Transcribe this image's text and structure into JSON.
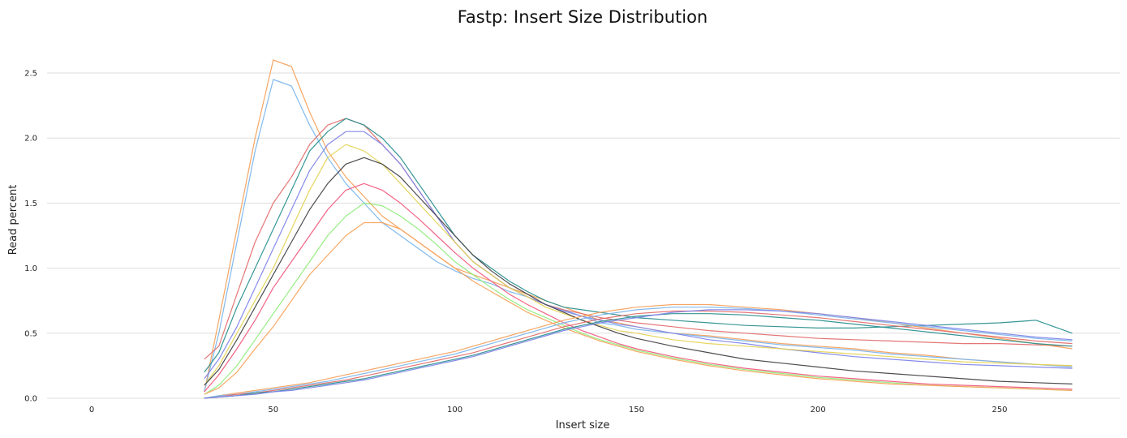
{
  "chart_data": {
    "type": "line",
    "title": "Fastp: Insert Size Distribution",
    "xlabel": "Insert size",
    "ylabel": "Read percent",
    "xlim": [
      -12,
      272
    ],
    "ylim": [
      0,
      2.75
    ],
    "x_ticks": [
      0,
      50,
      100,
      150,
      200,
      250
    ],
    "y_ticks": [
      0.0,
      0.5,
      1.0,
      1.5,
      2.0,
      2.5
    ],
    "y_tick_labels": [
      "0.0",
      "0.5",
      "1.0",
      "1.5",
      "2.0",
      "2.5"
    ],
    "grid": "horizontal",
    "legend": "none",
    "series_colors": [
      "#f4a15d",
      "#7cb5ec",
      "#e36f6f",
      "#2b908f",
      "#8085e9",
      "#e4d354",
      "#434348",
      "#f15c80",
      "#90ed7d",
      "#f7a35c"
    ],
    "x": [
      31,
      35,
      40,
      45,
      50,
      55,
      60,
      65,
      70,
      75,
      80,
      85,
      90,
      95,
      100,
      105,
      110,
      115,
      120,
      125,
      130,
      135,
      140,
      145,
      150,
      160,
      170,
      180,
      190,
      200,
      210,
      220,
      230,
      240,
      250,
      260,
      270
    ],
    "series": [
      {
        "values": [
          0.05,
          0.6,
          1.3,
          2.0,
          2.6,
          2.55,
          2.2,
          1.9,
          1.7,
          1.55,
          1.4,
          1.3,
          1.2,
          1.1,
          1.0,
          0.95,
          0.9,
          0.85,
          0.8,
          0.75,
          0.7,
          0.65,
          0.6,
          0.58,
          0.55,
          0.5,
          0.48,
          0.45,
          0.42,
          0.4,
          0.38,
          0.35,
          0.33,
          0.3,
          0.28,
          0.26,
          0.25
        ]
      },
      {
        "values": [
          0.05,
          0.5,
          1.2,
          1.9,
          2.45,
          2.4,
          2.1,
          1.85,
          1.65,
          1.5,
          1.35,
          1.25,
          1.15,
          1.05,
          0.98,
          0.92,
          0.88,
          0.82,
          0.78,
          0.72,
          0.68,
          0.63,
          0.58,
          0.56,
          0.53,
          0.5,
          0.47,
          0.44,
          0.41,
          0.39,
          0.37,
          0.34,
          0.32,
          0.3,
          0.28,
          0.26,
          0.24
        ]
      },
      {
        "values": [
          0.3,
          0.4,
          0.8,
          1.2,
          1.5,
          1.7,
          1.95,
          2.1,
          2.15,
          2.1,
          1.95,
          1.8,
          1.6,
          1.4,
          1.2,
          1.05,
          0.95,
          0.85,
          0.78,
          0.72,
          0.68,
          0.65,
          0.62,
          0.6,
          0.58,
          0.55,
          0.52,
          0.5,
          0.48,
          0.46,
          0.45,
          0.44,
          0.43,
          0.42,
          0.42,
          0.41,
          0.4
        ]
      },
      {
        "values": [
          0.2,
          0.35,
          0.7,
          1.0,
          1.3,
          1.6,
          1.9,
          2.05,
          2.15,
          2.1,
          2.0,
          1.85,
          1.65,
          1.45,
          1.25,
          1.1,
          1.0,
          0.9,
          0.82,
          0.75,
          0.7,
          0.68,
          0.66,
          0.64,
          0.62,
          0.6,
          0.58,
          0.56,
          0.55,
          0.54,
          0.54,
          0.55,
          0.56,
          0.57,
          0.58,
          0.6,
          0.5
        ]
      },
      {
        "values": [
          0.15,
          0.3,
          0.55,
          0.85,
          1.15,
          1.45,
          1.75,
          1.95,
          2.05,
          2.05,
          1.95,
          1.8,
          1.6,
          1.4,
          1.2,
          1.05,
          0.95,
          0.85,
          0.78,
          0.72,
          0.67,
          0.63,
          0.6,
          0.57,
          0.55,
          0.5,
          0.45,
          0.42,
          0.38,
          0.35,
          0.32,
          0.3,
          0.28,
          0.26,
          0.25,
          0.24,
          0.23
        ]
      },
      {
        "values": [
          0.1,
          0.25,
          0.5,
          0.75,
          1.0,
          1.3,
          1.6,
          1.85,
          1.95,
          1.9,
          1.8,
          1.65,
          1.5,
          1.35,
          1.2,
          1.05,
          0.95,
          0.85,
          0.78,
          0.7,
          0.65,
          0.6,
          0.56,
          0.52,
          0.5,
          0.45,
          0.42,
          0.4,
          0.38,
          0.36,
          0.34,
          0.32,
          0.3,
          0.28,
          0.27,
          0.26,
          0.25
        ]
      },
      {
        "values": [
          0.1,
          0.22,
          0.45,
          0.7,
          0.95,
          1.2,
          1.45,
          1.65,
          1.8,
          1.85,
          1.8,
          1.7,
          1.55,
          1.4,
          1.25,
          1.1,
          0.98,
          0.88,
          0.8,
          0.72,
          0.66,
          0.6,
          0.55,
          0.5,
          0.46,
          0.4,
          0.35,
          0.3,
          0.27,
          0.24,
          0.21,
          0.19,
          0.17,
          0.15,
          0.13,
          0.12,
          0.11
        ]
      },
      {
        "values": [
          0.05,
          0.18,
          0.38,
          0.6,
          0.85,
          1.05,
          1.25,
          1.45,
          1.6,
          1.65,
          1.6,
          1.5,
          1.38,
          1.25,
          1.12,
          1.0,
          0.9,
          0.8,
          0.72,
          0.65,
          0.58,
          0.52,
          0.47,
          0.42,
          0.38,
          0.32,
          0.27,
          0.23,
          0.2,
          0.17,
          0.15,
          0.13,
          0.11,
          0.1,
          0.09,
          0.08,
          0.07
        ]
      },
      {
        "values": [
          0.03,
          0.1,
          0.25,
          0.45,
          0.65,
          0.85,
          1.05,
          1.25,
          1.4,
          1.5,
          1.48,
          1.4,
          1.3,
          1.18,
          1.05,
          0.95,
          0.85,
          0.76,
          0.68,
          0.62,
          0.56,
          0.5,
          0.45,
          0.41,
          0.37,
          0.31,
          0.26,
          0.22,
          0.19,
          0.16,
          0.14,
          0.12,
          0.1,
          0.09,
          0.08,
          0.07,
          0.06
        ]
      },
      {
        "values": [
          0.03,
          0.08,
          0.2,
          0.38,
          0.55,
          0.75,
          0.95,
          1.1,
          1.25,
          1.35,
          1.35,
          1.3,
          1.2,
          1.1,
          1.0,
          0.9,
          0.82,
          0.74,
          0.66,
          0.6,
          0.54,
          0.49,
          0.44,
          0.4,
          0.36,
          0.3,
          0.25,
          0.21,
          0.18,
          0.15,
          0.13,
          0.11,
          0.1,
          0.09,
          0.08,
          0.07,
          0.06
        ]
      },
      {
        "values": [
          0.0,
          0.02,
          0.04,
          0.06,
          0.08,
          0.1,
          0.12,
          0.15,
          0.18,
          0.21,
          0.24,
          0.27,
          0.3,
          0.33,
          0.36,
          0.4,
          0.44,
          0.48,
          0.52,
          0.56,
          0.6,
          0.63,
          0.66,
          0.68,
          0.7,
          0.72,
          0.72,
          0.7,
          0.68,
          0.65,
          0.62,
          0.58,
          0.54,
          0.5,
          0.46,
          0.42,
          0.38
        ]
      },
      {
        "values": [
          0.0,
          0.02,
          0.03,
          0.05,
          0.07,
          0.09,
          0.11,
          0.13,
          0.16,
          0.19,
          0.22,
          0.25,
          0.28,
          0.31,
          0.34,
          0.38,
          0.42,
          0.46,
          0.5,
          0.54,
          0.58,
          0.61,
          0.64,
          0.66,
          0.68,
          0.7,
          0.7,
          0.69,
          0.67,
          0.64,
          0.61,
          0.58,
          0.55,
          0.52,
          0.49,
          0.46,
          0.44
        ]
      },
      {
        "values": [
          0.0,
          0.01,
          0.03,
          0.04,
          0.06,
          0.08,
          0.1,
          0.12,
          0.14,
          0.17,
          0.2,
          0.23,
          0.26,
          0.29,
          0.32,
          0.35,
          0.39,
          0.43,
          0.47,
          0.51,
          0.55,
          0.58,
          0.61,
          0.63,
          0.65,
          0.67,
          0.67,
          0.66,
          0.64,
          0.62,
          0.59,
          0.56,
          0.53,
          0.5,
          0.47,
          0.44,
          0.42
        ]
      },
      {
        "values": [
          0.0,
          0.01,
          0.02,
          0.04,
          0.05,
          0.07,
          0.09,
          0.11,
          0.13,
          0.15,
          0.18,
          0.21,
          0.24,
          0.27,
          0.3,
          0.33,
          0.37,
          0.41,
          0.45,
          0.49,
          0.53,
          0.56,
          0.59,
          0.61,
          0.63,
          0.65,
          0.65,
          0.64,
          0.62,
          0.6,
          0.57,
          0.54,
          0.51,
          0.48,
          0.45,
          0.42,
          0.4
        ]
      },
      {
        "values": [
          0.0,
          0.01,
          0.02,
          0.03,
          0.05,
          0.06,
          0.08,
          0.1,
          0.12,
          0.14,
          0.17,
          0.2,
          0.23,
          0.26,
          0.29,
          0.32,
          0.36,
          0.4,
          0.44,
          0.48,
          0.52,
          0.55,
          0.58,
          0.6,
          0.62,
          0.66,
          0.68,
          0.68,
          0.67,
          0.65,
          0.62,
          0.59,
          0.56,
          0.53,
          0.5,
          0.47,
          0.45
        ]
      }
    ]
  }
}
